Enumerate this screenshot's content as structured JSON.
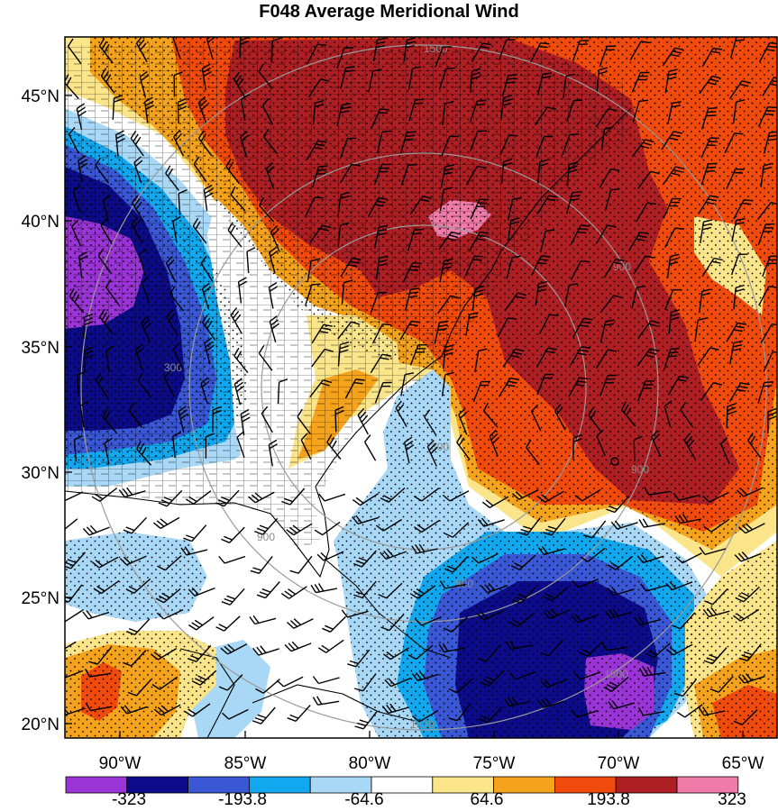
{
  "title": "F048 Average Meridional Wind",
  "lat_labels": [
    "45°N",
    "40°N",
    "35°N",
    "30°N",
    "25°N",
    "20°N"
  ],
  "lon_labels": [
    "90°W",
    "85°W",
    "80°W",
    "75°W",
    "70°W",
    "65°W"
  ],
  "colorbar": {
    "colors": [
      "#9a34d6",
      "#0c0c8a",
      "#3a58d6",
      "#12a8ef",
      "#a8d8f5",
      "#ffffff",
      "#fbe58a",
      "#f5a21c",
      "#f04a0c",
      "#ae1f24",
      "#f07aa8"
    ],
    "labels": [
      "-323",
      "-193.8",
      "-64.6",
      "64.6",
      "193.8",
      "323"
    ]
  },
  "ring_labels": [
    "1500",
    "900",
    "300",
    "900",
    "900",
    "1500",
    "300",
    "900",
    "1500"
  ],
  "colors": {
    "purple": "#9a34d6",
    "navy": "#0c0c8a",
    "blue": "#3a58d6",
    "cyan": "#12a8ef",
    "lightblue": "#a8d8f5",
    "white": "#ffffff",
    "yellow": "#fbe58a",
    "orange": "#f5a21c",
    "redorange": "#f04a0c",
    "darkred": "#ae1f24",
    "pink": "#f07aa8"
  }
}
